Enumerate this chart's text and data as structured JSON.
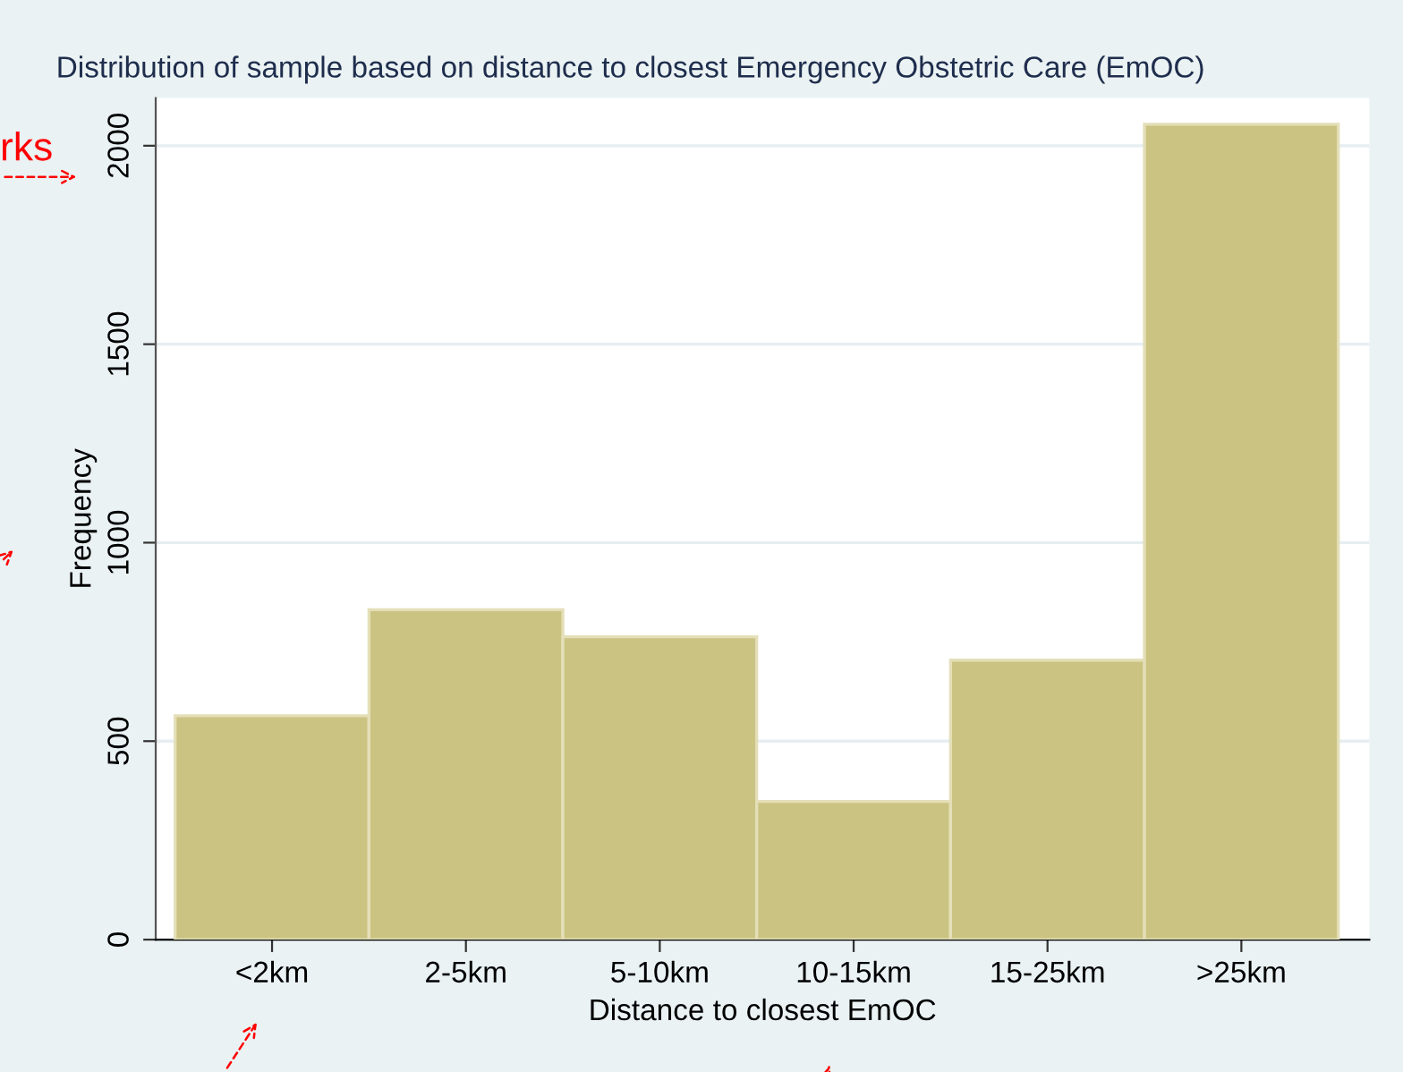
{
  "chart_data": {
    "type": "bar",
    "title": "Distribution of sample based on distance to closest Emergency Obstetric Care (EmOC)",
    "xlabel": "Distance to closest EmOC",
    "ylabel": "Frequency",
    "categories": [
      "<2km",
      "2-5km",
      "5-10km",
      "10-15km",
      "15-25km",
      ">25km"
    ],
    "values": [
      564,
      831,
      763,
      348,
      704,
      2054
    ],
    "color": "#cbc382",
    "ylim": [
      0,
      2120
    ],
    "yticks": [
      0,
      500,
      1000,
      1500,
      2000
    ],
    "grid": "y",
    "annotations": [
      "rks"
    ]
  }
}
